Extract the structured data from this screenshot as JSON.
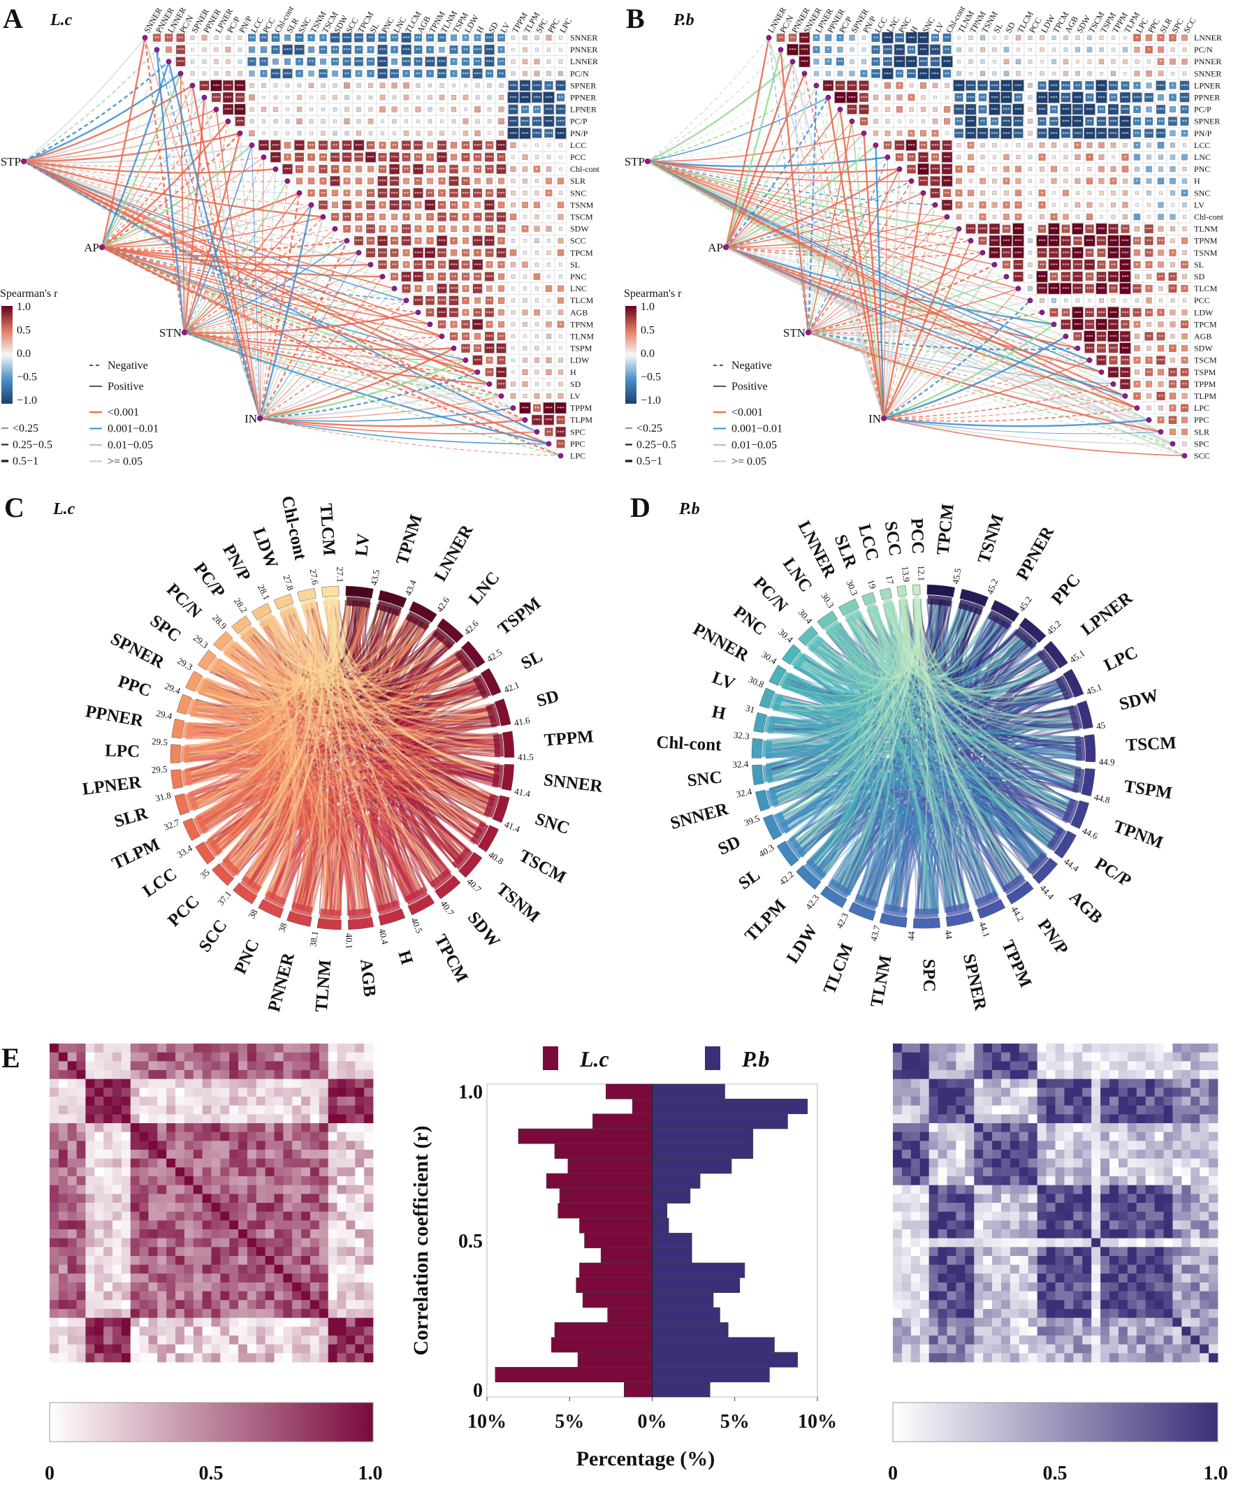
{
  "panels": {
    "A": {
      "letter": "A",
      "species": "L.c",
      "variables": [
        "SNNER",
        "PNNER",
        "LNNER",
        "PC/N",
        "SPNER",
        "PPNER",
        "LPNER",
        "PC/P",
        "PN/P",
        "LCC",
        "PCC",
        "Chl-cont",
        "SLR",
        "SNC",
        "TSNM",
        "TSCM",
        "SDW",
        "SCC",
        "TPCM",
        "SL",
        "PNC",
        "LNC",
        "TLCM",
        "AGB",
        "TPNM",
        "TLNM",
        "TSPM",
        "LDW",
        "H",
        "SD",
        "LV",
        "TPPM",
        "TLPM",
        "SPC",
        "PPC",
        "LPC"
      ],
      "nodes": [
        "STP",
        "AP",
        "STN",
        "IN"
      ]
    },
    "B": {
      "letter": "B",
      "species": "P.b",
      "variables": [
        "LNNER",
        "PC/N",
        "PNNER",
        "SNNER",
        "LPNER",
        "PPNER",
        "PC/P",
        "SPNER",
        "PN/P",
        "LCC",
        "LNC",
        "PNC",
        "H",
        "SNC",
        "LV",
        "Chl-cont",
        "TLNM",
        "TPNM",
        "TSNM",
        "SL",
        "SD",
        "TLCM",
        "PCC",
        "LDW",
        "TPCM",
        "AGB",
        "SDW",
        "TSCM",
        "TSPM",
        "TPPM",
        "TLPM",
        "LPC",
        "PPC",
        "SLR",
        "SPC",
        "SCC"
      ],
      "nodes": [
        "STP",
        "AP",
        "STN",
        "IN"
      ]
    },
    "C": {
      "letter": "C",
      "species": "L.c"
    },
    "D": {
      "letter": "D",
      "species": "P.b"
    },
    "E": {
      "letter": "E"
    }
  },
  "legend": {
    "spearman_title": "Spearman's r",
    "spearman_ticks": [
      "1.0",
      "0.5",
      "0.0",
      "−0.5",
      "−1.0"
    ],
    "line_types": [
      "Negative",
      "Positive"
    ],
    "p_values": [
      "<0.001",
      "0.001−0.01",
      "0.01−0.05",
      ">= 0.05"
    ],
    "p_colors": [
      "#e8654a",
      "#3a8ccc",
      "#90d890",
      "#c8c8c8"
    ],
    "sizes": [
      "<0.25",
      "0.25−0.5",
      "0.5−1"
    ]
  },
  "colors": {
    "neg": "#1f4e79",
    "pos": "#8b0f1f",
    "lc": "#7a0a3c",
    "pb": "#3b2f78",
    "node": "#b0107a"
  },
  "chart_data": [
    {
      "type": "heatmap",
      "panel": "A",
      "title": "L.c",
      "colorbar_title": "Spearman's r",
      "range": [
        -1,
        1
      ]
    },
    {
      "type": "heatmap",
      "panel": "B",
      "title": "P.b",
      "colorbar_title": "Spearman's r",
      "range": [
        -1,
        1
      ]
    },
    {
      "type": "chord",
      "panel": "C",
      "title": "L.c",
      "categories": [
        "LV",
        "TPNM",
        "LNNER",
        "LNC",
        "TSPM",
        "SL",
        "SD",
        "TPPM",
        "SNNER",
        "SNC",
        "TSCM",
        "TSNM",
        "SDW",
        "TPCM",
        "H",
        "AGB",
        "TLNM",
        "PNNER",
        "PNC",
        "SCC",
        "PCC",
        "LCC",
        "TLPM",
        "SLR",
        "LPNER",
        "LPC",
        "PPNER",
        "PPC",
        "SPNER",
        "SPC",
        "PC/N",
        "PC/P",
        "PN/P",
        "LDW",
        "Chl-cont",
        "TLCM"
      ],
      "values": [
        "43.5",
        "43.4",
        "42.6",
        "42.6",
        "42.5",
        "42.1",
        "41.6",
        "41.5",
        "41.4",
        "41.4",
        "40.8",
        "40.7",
        "40.7",
        "40.5",
        "40.4",
        "40.1",
        "38.1",
        "38",
        "38",
        "37.1",
        "35",
        "33.4",
        "32.7",
        "31.8",
        "29.5",
        "29.5",
        "29.4",
        "29.4",
        "29.3",
        "29.3",
        "28.9",
        "28.2",
        "28.1",
        "27.8",
        "27.6",
        "27.1"
      ]
    },
    {
      "type": "chord",
      "panel": "D",
      "title": "P.b",
      "categories": [
        "TPCM",
        "TSNM",
        "PPNER",
        "PPC",
        "LPNER",
        "LPC",
        "SDW",
        "TSCM",
        "TSPM",
        "TPNM",
        "PC/P",
        "AGB",
        "PN/P",
        "TPPM",
        "SPNER",
        "SPC",
        "TLNM",
        "TLCM",
        "LDW",
        "TLPM",
        "SL",
        "SD",
        "SNNER",
        "SNC",
        "Chl-cont",
        "H",
        "LV",
        "PNNER",
        "PNC",
        "PC/N",
        "LNC",
        "LNNER",
        "SLR",
        "LCC",
        "SCC",
        "PCC"
      ],
      "values": [
        "45.5",
        "45.2",
        "45.2",
        "45.2",
        "45.1",
        "45.1",
        "45",
        "44.9",
        "44.8",
        "44.6",
        "44.4",
        "44.4",
        "44.2",
        "44.1",
        "44",
        "44",
        "43.7",
        "42.3",
        "42.3",
        "42.2",
        "40.3",
        "39.5",
        "32.4",
        "32.4",
        "32.3",
        "31",
        "30.8",
        "30.4",
        "30.4",
        "30.4",
        "30.3",
        "30.3",
        "19",
        "17",
        "13.9",
        "12.1"
      ]
    },
    {
      "type": "bar",
      "panel": "E",
      "orientation": "horizontal-butterfly",
      "categories": [
        1.0,
        0.95,
        0.9,
        0.85,
        0.8,
        0.75,
        0.7,
        0.65,
        0.6,
        0.55,
        0.5,
        0.45,
        0.4,
        0.35,
        0.3,
        0.25,
        0.2,
        0.15,
        0.1,
        0.05,
        0.0
      ],
      "series": [
        {
          "name": "L.c",
          "color": "#7a0a3c",
          "values": [
            2.8,
            1.2,
            3.6,
            8.1,
            5.9,
            5.1,
            6.4,
            5.6,
            5.7,
            4.4,
            4.1,
            3.1,
            4.4,
            4.6,
            4.2,
            2.7,
            5.9,
            6.1,
            4.5,
            9.5,
            1.7
          ]
        },
        {
          "name": "P.b",
          "color": "#3b2f78",
          "values": [
            4.4,
            9.4,
            8.2,
            6.1,
            6.1,
            4.8,
            2.9,
            2.3,
            0.9,
            1.0,
            2.4,
            2.4,
            5.6,
            5.3,
            3.7,
            4.1,
            4.6,
            7.4,
            8.8,
            7.1,
            3.5
          ]
        }
      ],
      "xlabel": "Percentage (%)",
      "ylabel": "Correlation coefficient (r)",
      "xticks": [
        "10%",
        "5%",
        "0%",
        "5%",
        "10%"
      ],
      "yticks": [
        "1.0",
        "0.5",
        "0"
      ],
      "xlim": [
        -10,
        10
      ],
      "ylim": [
        0,
        1
      ],
      "legend": "top"
    },
    {
      "type": "heatmap",
      "panel": "E-left",
      "colorbar_ticks": [
        "0",
        "0.5",
        "1.0"
      ],
      "range": [
        0,
        1
      ]
    },
    {
      "type": "heatmap",
      "panel": "E-right",
      "colorbar_ticks": [
        "0",
        "0.5",
        "1.0"
      ],
      "range": [
        0,
        1
      ]
    }
  ]
}
